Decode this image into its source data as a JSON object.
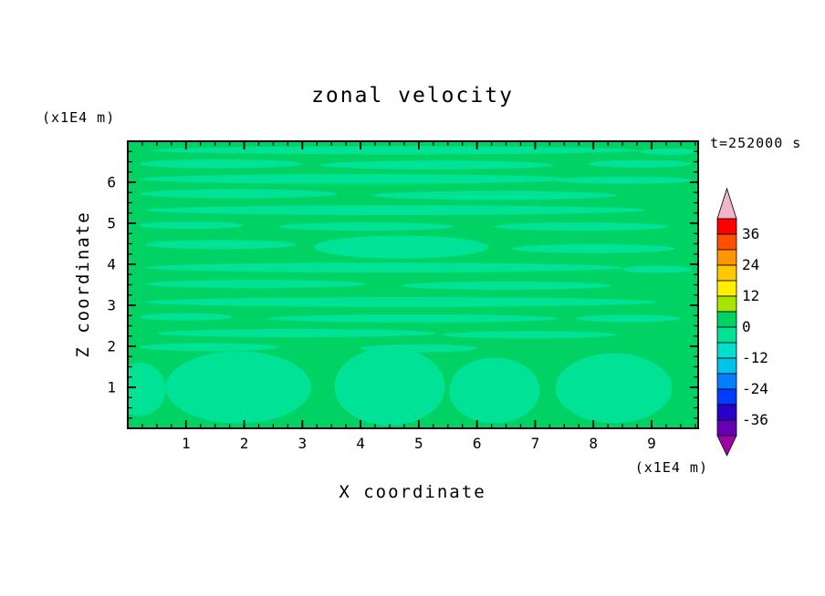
{
  "chart_data": {
    "type": "contour",
    "title": "zonal velocity",
    "xlabel": "X coordinate",
    "zlabel": "Z coordinate",
    "x_units": "(x1E4 m)",
    "z_units": "(x1E4 m)",
    "time_label": "t=252000 s",
    "x_range": [
      0,
      9.8
    ],
    "z_range": [
      0,
      7.0
    ],
    "x_ticks": [
      1,
      2,
      3,
      4,
      5,
      6,
      7,
      8,
      9
    ],
    "z_ticks": [
      1,
      2,
      3,
      4,
      5,
      6
    ],
    "minor_tick_step": 0.25,
    "grid": false,
    "field_colors": {
      "background": "#00D264",
      "band": "#00E296"
    },
    "bands": [
      {
        "x": 4.6,
        "z": 6.78,
        "rx": 4.2,
        "rz": 0.1
      },
      {
        "x": 9.3,
        "z": 6.75,
        "rx": 0.5,
        "rz": 0.08
      },
      {
        "x": 1.6,
        "z": 6.45,
        "rx": 1.4,
        "rz": 0.11
      },
      {
        "x": 5.3,
        "z": 6.42,
        "rx": 2.0,
        "rz": 0.11
      },
      {
        "x": 8.8,
        "z": 6.45,
        "rx": 0.9,
        "rz": 0.09
      },
      {
        "x": 3.9,
        "z": 6.08,
        "rx": 3.7,
        "rz": 0.12
      },
      {
        "x": 8.5,
        "z": 6.05,
        "rx": 1.2,
        "rz": 0.09
      },
      {
        "x": 1.9,
        "z": 5.72,
        "rx": 1.7,
        "rz": 0.11
      },
      {
        "x": 6.3,
        "z": 5.68,
        "rx": 2.1,
        "rz": 0.11
      },
      {
        "x": 4.6,
        "z": 5.32,
        "rx": 4.3,
        "rz": 0.12
      },
      {
        "x": 1.1,
        "z": 4.95,
        "rx": 0.9,
        "rz": 0.09
      },
      {
        "x": 4.1,
        "z": 4.92,
        "rx": 1.5,
        "rz": 0.1
      },
      {
        "x": 7.8,
        "z": 4.92,
        "rx": 1.5,
        "rz": 0.1
      },
      {
        "x": 4.7,
        "z": 4.42,
        "rx": 1.5,
        "rz": 0.28
      },
      {
        "x": 1.6,
        "z": 4.48,
        "rx": 1.3,
        "rz": 0.11
      },
      {
        "x": 8.0,
        "z": 4.38,
        "rx": 1.4,
        "rz": 0.11
      },
      {
        "x": 4.4,
        "z": 3.92,
        "rx": 4.1,
        "rz": 0.12
      },
      {
        "x": 9.1,
        "z": 3.88,
        "rx": 0.6,
        "rz": 0.09
      },
      {
        "x": 2.2,
        "z": 3.52,
        "rx": 1.9,
        "rz": 0.1
      },
      {
        "x": 6.5,
        "z": 3.48,
        "rx": 1.8,
        "rz": 0.1
      },
      {
        "x": 4.7,
        "z": 3.08,
        "rx": 4.4,
        "rz": 0.12
      },
      {
        "x": 1.0,
        "z": 2.72,
        "rx": 0.8,
        "rz": 0.09
      },
      {
        "x": 4.9,
        "z": 2.68,
        "rx": 2.5,
        "rz": 0.1
      },
      {
        "x": 8.6,
        "z": 2.68,
        "rx": 0.9,
        "rz": 0.09
      },
      {
        "x": 2.9,
        "z": 2.32,
        "rx": 2.4,
        "rz": 0.1
      },
      {
        "x": 6.9,
        "z": 2.28,
        "rx": 1.5,
        "rz": 0.09
      },
      {
        "x": 1.4,
        "z": 1.98,
        "rx": 1.2,
        "rz": 0.1
      },
      {
        "x": 5.0,
        "z": 1.95,
        "rx": 1.0,
        "rz": 0.1
      },
      {
        "x": 1.9,
        "z": 1.0,
        "rx": 1.25,
        "rz": 0.88
      },
      {
        "x": 4.5,
        "z": 1.02,
        "rx": 0.95,
        "rz": 0.95
      },
      {
        "x": 6.3,
        "z": 0.92,
        "rx": 0.78,
        "rz": 0.8
      },
      {
        "x": 8.35,
        "z": 0.98,
        "rx": 1.0,
        "rz": 0.85
      },
      {
        "x": 0.2,
        "z": 0.95,
        "rx": 0.45,
        "rz": 0.65
      }
    ],
    "colorbar": {
      "labels": [
        36,
        24,
        12,
        0,
        -12,
        -24,
        -36
      ],
      "levels": [
        -42,
        -36,
        -30,
        -24,
        -18,
        -12,
        -6,
        0,
        6,
        12,
        18,
        24,
        30,
        36,
        42
      ],
      "segment_colors_top_to_bottom": [
        "#FF0000",
        "#FF5000",
        "#FF9600",
        "#FFC800",
        "#FFF000",
        "#A8E400",
        "#00D264",
        "#00E296",
        "#00E0CC",
        "#00C3EB",
        "#0080FF",
        "#003CFF",
        "#2800C8",
        "#6400B4"
      ],
      "over_color": "#F2B4C8",
      "under_color": "#A000A8"
    }
  }
}
